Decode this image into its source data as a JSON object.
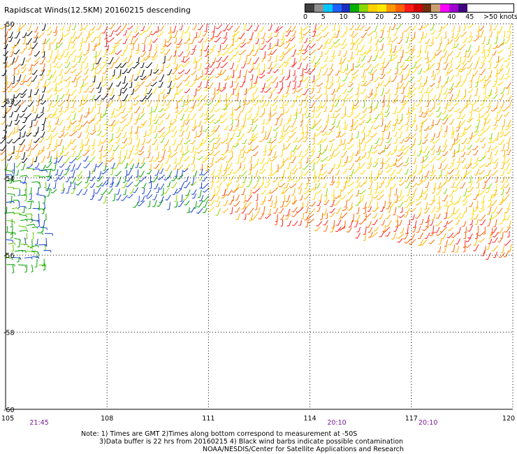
{
  "title": "Rapidscat Winds(12.5KM) 20160215 descending",
  "colorbar": {
    "labels": [
      "0",
      "5",
      "10",
      "15",
      "20",
      "25",
      "30",
      "35",
      "40",
      "45",
      ">50 knots"
    ],
    "colors": [
      "#404040",
      "#909090",
      "#00c8ff",
      "#2060ff",
      "#1830c0",
      "#00b000",
      "#8ad800",
      "#ffd000",
      "#ffe800",
      "#ff9800",
      "#ff6000",
      "#ff1a1a",
      "#d00000",
      "#6e3010",
      "#c8a070",
      "#ff00ff",
      "#a000d0",
      "#400080"
    ]
  },
  "map": {
    "lat_labels": [
      "-50",
      "-52",
      "-54",
      "-56",
      "-58",
      "-60"
    ],
    "lon_labels": [
      "105",
      "108",
      "111",
      "114",
      "117",
      "120"
    ]
  },
  "time_labels": [
    {
      "text": "21:45",
      "lon": 106
    },
    {
      "text": "20:10",
      "lon": 114.8
    },
    {
      "text": "20:10",
      "lon": 117.5
    }
  ],
  "notes": {
    "line1": "Note: 1) Times are GMT 2)Times along bottom correspond to measurement at -50S",
    "line2": "3)Data buffer is 22 hrs from 20160215 4) Black wind barbs indicate possible contamination",
    "line3": "NOAA/NESDIS/Center for Satellite Applications and Research"
  }
}
